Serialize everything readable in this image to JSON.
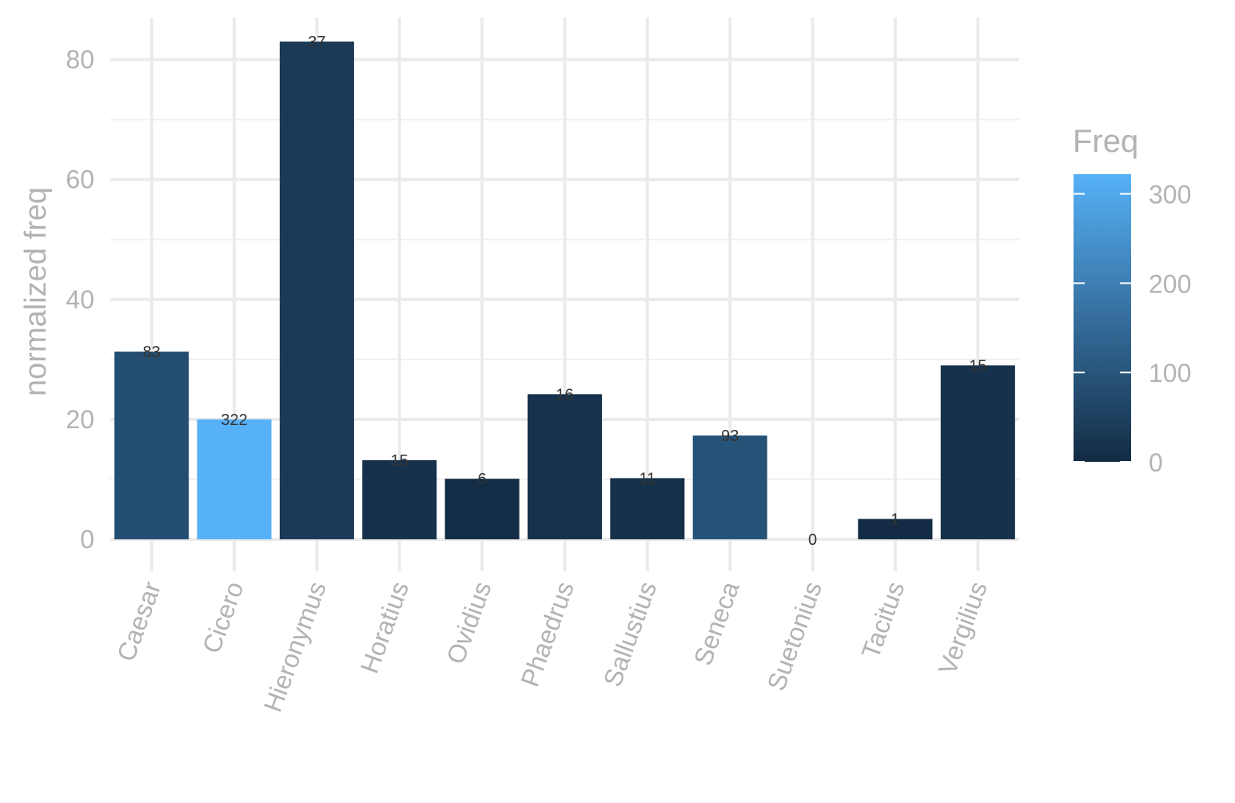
{
  "chart_data": {
    "type": "bar",
    "xlabel": "",
    "ylabel": "normalized freq",
    "ylim": [
      -4,
      87
    ],
    "yticks": [
      0,
      20,
      40,
      60,
      80
    ],
    "grid": true,
    "categories": [
      "Caesar",
      "Cicero",
      "Hieronymus",
      "Horatius",
      "Ovidius",
      "Phaedrus",
      "Sallustius",
      "Seneca",
      "Suetonius",
      "Tacitus",
      "Vergilius"
    ],
    "values": [
      31.3,
      20.0,
      83.0,
      13.2,
      10.1,
      24.2,
      10.2,
      17.3,
      0,
      3.4,
      29.0
    ],
    "freq": [
      83,
      322,
      37,
      15,
      6,
      16,
      11,
      93,
      0,
      1,
      15
    ],
    "data_labels": [
      "83",
      "322",
      "37",
      "15",
      "6",
      "16",
      "11",
      "93",
      "0",
      "1",
      "15"
    ],
    "color_scale": {
      "title": "Freq",
      "low_color": "#132B43",
      "high_color": "#56B1F7",
      "limits": [
        0,
        322
      ],
      "ticks": [
        0,
        100,
        200,
        300
      ],
      "tick_labels": [
        "0",
        "100",
        "200",
        "300"
      ],
      "placement": "right"
    }
  }
}
